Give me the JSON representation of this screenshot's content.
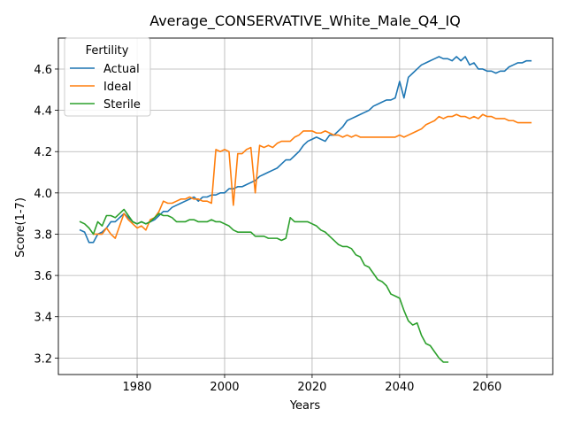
{
  "chart_data": {
    "type": "line",
    "title": "Average_CONSERVATIVE_White_Male_Q4_IQ",
    "xlabel": "Years",
    "ylabel": "Score(1-7)",
    "xlim": [
      1962,
      2075
    ],
    "ylim": [
      3.12,
      4.75
    ],
    "xticks": [
      1980,
      2000,
      2020,
      2040,
      2060
    ],
    "yticks": [
      3.2,
      3.4,
      3.6,
      3.8,
      4.0,
      4.2,
      4.4,
      4.6
    ],
    "ytick_labels": [
      "3.2",
      "3.4",
      "3.6",
      "3.8",
      "4.0",
      "4.2",
      "4.4",
      "4.6"
    ],
    "grid": true,
    "legend": {
      "title": "Fertility",
      "position": "upper-left"
    },
    "series": [
      {
        "name": "Actual",
        "color": "#1f77b4",
        "x": [
          1967,
          1968,
          1969,
          1970,
          1971,
          1972,
          1973,
          1974,
          1975,
          1976,
          1977,
          1978,
          1979,
          1980,
          1981,
          1982,
          1983,
          1984,
          1985,
          1986,
          1987,
          1988,
          1989,
          1990,
          1991,
          1992,
          1993,
          1994,
          1995,
          1996,
          1997,
          1998,
          1999,
          2000,
          2001,
          2002,
          2003,
          2004,
          2005,
          2006,
          2007,
          2008,
          2009,
          2010,
          2011,
          2012,
          2013,
          2014,
          2015,
          2016,
          2017,
          2018,
          2019,
          2020,
          2021,
          2022,
          2023,
          2024,
          2025,
          2026,
          2027,
          2028,
          2029,
          2030,
          2031,
          2032,
          2033,
          2034,
          2035,
          2036,
          2037,
          2038,
          2039,
          2040,
          2041,
          2042,
          2043,
          2044,
          2045,
          2046,
          2047,
          2048,
          2049,
          2050,
          2051,
          2052,
          2053,
          2054,
          2055,
          2056,
          2057,
          2058,
          2059,
          2060,
          2061,
          2062,
          2063,
          2064,
          2065,
          2066,
          2067,
          2068,
          2069,
          2070
        ],
        "values": [
          3.82,
          3.81,
          3.76,
          3.76,
          3.8,
          3.81,
          3.83,
          3.86,
          3.86,
          3.88,
          3.9,
          3.88,
          3.86,
          3.85,
          3.86,
          3.85,
          3.86,
          3.87,
          3.89,
          3.91,
          3.91,
          3.93,
          3.94,
          3.95,
          3.96,
          3.97,
          3.98,
          3.96,
          3.98,
          3.98,
          3.99,
          3.99,
          4.0,
          4.0,
          4.02,
          4.02,
          4.03,
          4.03,
          4.04,
          4.05,
          4.06,
          4.08,
          4.09,
          4.1,
          4.11,
          4.12,
          4.14,
          4.16,
          4.16,
          4.18,
          4.2,
          4.23,
          4.25,
          4.26,
          4.27,
          4.26,
          4.25,
          4.28,
          4.28,
          4.3,
          4.32,
          4.35,
          4.36,
          4.37,
          4.38,
          4.39,
          4.4,
          4.42,
          4.43,
          4.44,
          4.45,
          4.45,
          4.46,
          4.54,
          4.46,
          4.56,
          4.58,
          4.6,
          4.62,
          4.63,
          4.64,
          4.65,
          4.66,
          4.65,
          4.65,
          4.64,
          4.66,
          4.64,
          4.66,
          4.62,
          4.63,
          4.6,
          4.6,
          4.59,
          4.59,
          4.58,
          4.59,
          4.59,
          4.61,
          4.62,
          4.63,
          4.63,
          4.64,
          4.64
        ]
      },
      {
        "name": "Ideal",
        "color": "#ff7f0e",
        "x": [
          1970,
          1971,
          1972,
          1973,
          1974,
          1975,
          1976,
          1977,
          1978,
          1979,
          1980,
          1981,
          1982,
          1983,
          1984,
          1985,
          1986,
          1987,
          1988,
          1989,
          1990,
          1991,
          1992,
          1993,
          1994,
          1995,
          1996,
          1997,
          1998,
          1999,
          2000,
          2001,
          2002,
          2003,
          2004,
          2005,
          2006,
          2007,
          2008,
          2009,
          2010,
          2011,
          2012,
          2013,
          2014,
          2015,
          2016,
          2017,
          2018,
          2019,
          2020,
          2021,
          2022,
          2023,
          2024,
          2025,
          2026,
          2027,
          2028,
          2029,
          2030,
          2031,
          2032,
          2033,
          2034,
          2035,
          2036,
          2037,
          2038,
          2039,
          2040,
          2041,
          2042,
          2043,
          2044,
          2045,
          2046,
          2047,
          2048,
          2049,
          2050,
          2051,
          2052,
          2053,
          2054,
          2055,
          2056,
          2057,
          2058,
          2059,
          2060,
          2061,
          2062,
          2063,
          2064,
          2065,
          2066,
          2067,
          2068,
          2069,
          2070
        ],
        "values": [
          3.8,
          3.8,
          3.8,
          3.83,
          3.8,
          3.78,
          3.84,
          3.9,
          3.87,
          3.85,
          3.83,
          3.84,
          3.82,
          3.87,
          3.88,
          3.91,
          3.96,
          3.95,
          3.95,
          3.96,
          3.97,
          3.97,
          3.98,
          3.97,
          3.97,
          3.96,
          3.96,
          3.95,
          4.21,
          4.2,
          4.21,
          4.2,
          3.94,
          4.19,
          4.19,
          4.21,
          4.22,
          4.0,
          4.23,
          4.22,
          4.23,
          4.22,
          4.24,
          4.25,
          4.25,
          4.25,
          4.27,
          4.28,
          4.3,
          4.3,
          4.3,
          4.29,
          4.29,
          4.3,
          4.29,
          4.28,
          4.28,
          4.27,
          4.28,
          4.27,
          4.28,
          4.27,
          4.27,
          4.27,
          4.27,
          4.27,
          4.27,
          4.27,
          4.27,
          4.27,
          4.28,
          4.27,
          4.28,
          4.29,
          4.3,
          4.31,
          4.33,
          4.34,
          4.35,
          4.37,
          4.36,
          4.37,
          4.37,
          4.38,
          4.37,
          4.37,
          4.36,
          4.37,
          4.36,
          4.38,
          4.37,
          4.37,
          4.36,
          4.36,
          4.36,
          4.35,
          4.35,
          4.34,
          4.34,
          4.34,
          4.34
        ]
      },
      {
        "name": "Sterile",
        "color": "#2ca02c",
        "x": [
          1967,
          1968,
          1969,
          1970,
          1971,
          1972,
          1973,
          1974,
          1975,
          1976,
          1977,
          1978,
          1979,
          1980,
          1981,
          1982,
          1983,
          1984,
          1985,
          1986,
          1987,
          1988,
          1989,
          1990,
          1991,
          1992,
          1993,
          1994,
          1995,
          1996,
          1997,
          1998,
          1999,
          2000,
          2001,
          2002,
          2003,
          2004,
          2005,
          2006,
          2007,
          2008,
          2009,
          2010,
          2011,
          2012,
          2013,
          2014,
          2015,
          2016,
          2017,
          2018,
          2019,
          2020,
          2021,
          2022,
          2023,
          2024,
          2025,
          2026,
          2027,
          2028,
          2029,
          2030,
          2031,
          2032,
          2033,
          2034,
          2035,
          2036,
          2037,
          2038,
          2039,
          2040,
          2041,
          2042,
          2043,
          2044,
          2045,
          2046,
          2047,
          2048,
          2049,
          2050,
          2051
        ],
        "values": [
          3.86,
          3.85,
          3.83,
          3.8,
          3.86,
          3.84,
          3.89,
          3.89,
          3.88,
          3.9,
          3.92,
          3.89,
          3.86,
          3.85,
          3.86,
          3.85,
          3.86,
          3.88,
          3.9,
          3.89,
          3.89,
          3.88,
          3.86,
          3.86,
          3.86,
          3.87,
          3.87,
          3.86,
          3.86,
          3.86,
          3.87,
          3.86,
          3.86,
          3.85,
          3.84,
          3.82,
          3.81,
          3.81,
          3.81,
          3.81,
          3.79,
          3.79,
          3.79,
          3.78,
          3.78,
          3.78,
          3.77,
          3.78,
          3.88,
          3.86,
          3.86,
          3.86,
          3.86,
          3.85,
          3.84,
          3.82,
          3.81,
          3.79,
          3.77,
          3.75,
          3.74,
          3.74,
          3.73,
          3.7,
          3.69,
          3.65,
          3.64,
          3.61,
          3.58,
          3.57,
          3.55,
          3.51,
          3.5,
          3.49,
          3.43,
          3.38,
          3.36,
          3.37,
          3.31,
          3.27,
          3.26,
          3.23,
          3.2,
          3.18,
          3.18
        ]
      }
    ]
  }
}
